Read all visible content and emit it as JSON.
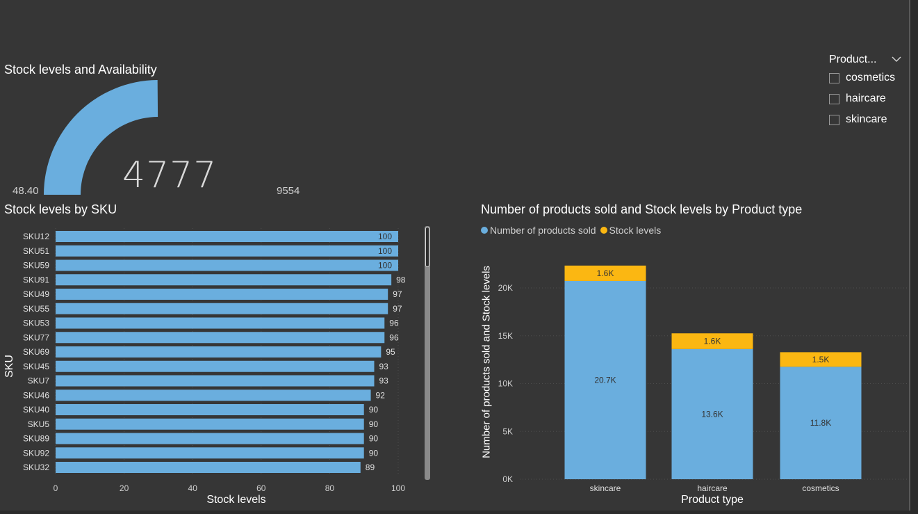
{
  "gauge": {
    "title": "Stock levels and Availability",
    "value": "4777",
    "min": "48.40",
    "max": "9554",
    "value_num": 4777,
    "min_num": 48.4,
    "max_num": 9554,
    "color": "#6aaede"
  },
  "slicer": {
    "title": "Product...",
    "items": [
      "cosmetics",
      "haircare",
      "skincare"
    ]
  },
  "chart_data": [
    {
      "type": "bar",
      "orientation": "horizontal",
      "title": "Stock levels by SKU",
      "xlabel": "Stock levels",
      "ylabel": "SKU",
      "categories": [
        "SKU12",
        "SKU51",
        "SKU59",
        "SKU91",
        "SKU49",
        "SKU55",
        "SKU53",
        "SKU77",
        "SKU69",
        "SKU45",
        "SKU7",
        "SKU46",
        "SKU40",
        "SKU5",
        "SKU89",
        "SKU92",
        "SKU32"
      ],
      "values": [
        100,
        100,
        100,
        98,
        97,
        97,
        96,
        96,
        95,
        93,
        93,
        92,
        90,
        90,
        90,
        90,
        89
      ],
      "xlim": [
        0,
        100
      ],
      "xticks": [
        "0",
        "20",
        "40",
        "60",
        "80",
        "100"
      ],
      "color": "#6aaede"
    },
    {
      "type": "bar",
      "stacked": true,
      "title": "Number of products sold and Stock levels by Product type",
      "xlabel": "Product type",
      "ylabel": "Number of products sold and Stock levels",
      "categories": [
        "skincare",
        "haircare",
        "cosmetics"
      ],
      "series": [
        {
          "name": "Number of products sold",
          "values": [
            20731,
            13611,
            11757
          ],
          "labels": [
            "20.7K",
            "13.6K",
            "11.8K"
          ],
          "color": "#6aaede"
        },
        {
          "name": "Stock levels",
          "values": [
            1608,
            1644,
            1525
          ],
          "labels": [
            "1.6K",
            "1.6K",
            "1.5K"
          ],
          "color": "#fbb712"
        }
      ],
      "ylim": [
        0,
        24000
      ],
      "yticks": [
        "0K",
        "5K",
        "10K",
        "15K",
        "20K"
      ],
      "ytick_values": [
        0,
        5000,
        10000,
        15000,
        20000
      ],
      "legend": "top-left",
      "grid": true
    }
  ]
}
